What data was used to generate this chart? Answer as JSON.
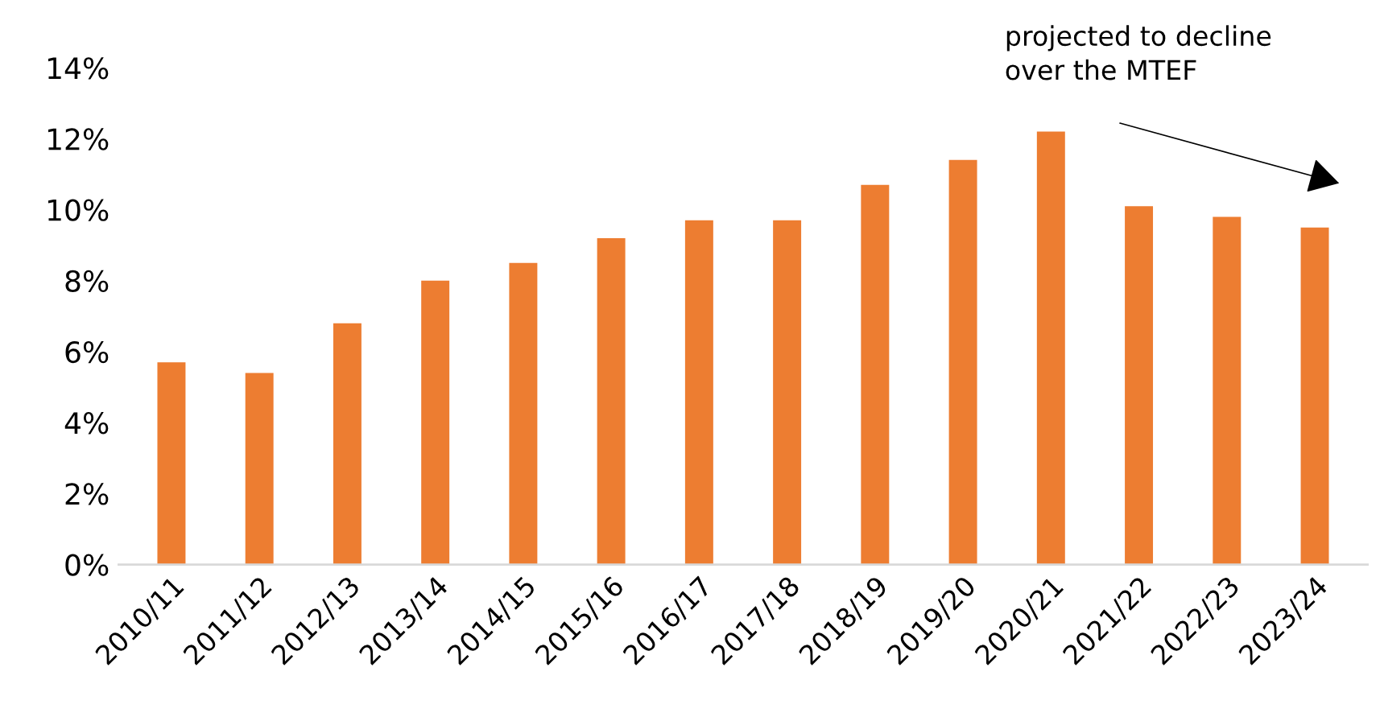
{
  "chart_data": {
    "type": "bar",
    "categories": [
      "2010/11",
      "2011/12",
      "2012/13",
      "2013/14",
      "2014/15",
      "2015/16",
      "2016/17",
      "2017/18",
      "2018/19",
      "2019/20",
      "2020/21",
      "2021/22",
      "2022/23",
      "2023/24"
    ],
    "values": [
      5.7,
      5.4,
      6.8,
      8.0,
      8.5,
      9.2,
      9.7,
      9.7,
      10.7,
      11.4,
      12.2,
      10.1,
      9.8,
      9.5
    ],
    "color": "#ed7d31",
    "ylim": [
      0,
      14
    ],
    "yticks": [
      {
        "value": 0,
        "label": "0%"
      },
      {
        "value": 2,
        "label": "2%"
      },
      {
        "value": 4,
        "label": "4%"
      },
      {
        "value": 6,
        "label": "6%"
      },
      {
        "value": 8,
        "label": "8%"
      },
      {
        "value": 10,
        "label": "10%"
      },
      {
        "value": 12,
        "label": "12%"
      },
      {
        "value": 14,
        "label": "14%"
      }
    ],
    "grid": false,
    "annotations": [
      "projected to decline\nover the MTEF"
    ]
  }
}
